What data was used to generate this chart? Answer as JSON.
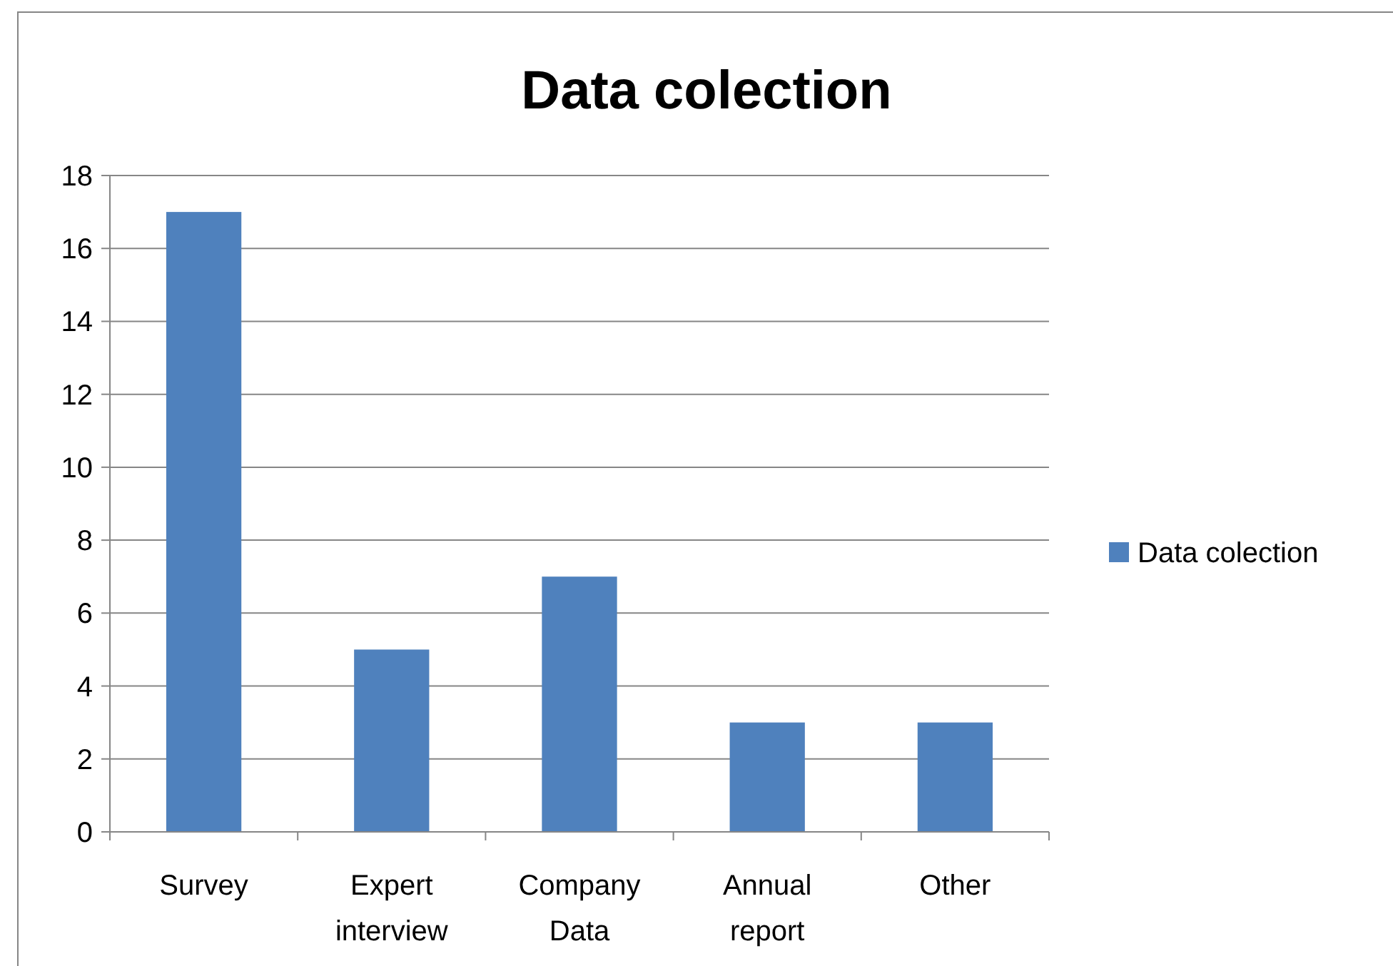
{
  "chart_data": {
    "type": "bar",
    "title": "Data colection",
    "categories": [
      "Survey",
      "Expert interview",
      "Company Data",
      "Annual report",
      "Other"
    ],
    "series": [
      {
        "name": "Data colection",
        "color": "#4f81bd",
        "values": [
          17,
          5,
          7,
          3,
          3
        ]
      }
    ],
    "ylim": [
      0,
      18
    ],
    "yticks": [
      0,
      2,
      4,
      6,
      8,
      10,
      12,
      14,
      16,
      18
    ],
    "grid": "y",
    "legend": "right"
  }
}
